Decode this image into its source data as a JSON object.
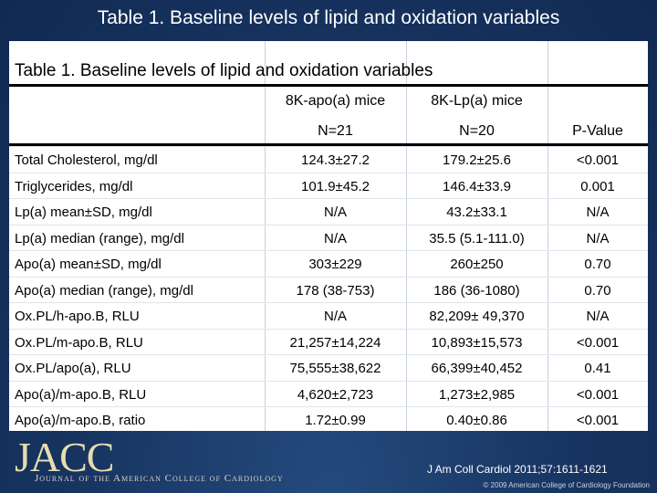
{
  "slide_title": "Table 1. Baseline levels of lipid and oxidation variables",
  "table": {
    "title": "Table 1. Baseline levels of lipid and oxidation variables",
    "headers": {
      "col1": {
        "group": "8K-apo(a) mice",
        "n": "N=21"
      },
      "col2": {
        "group": "8K-Lp(a) mice",
        "n": "N=20"
      },
      "col3": {
        "n": "P-Value"
      }
    },
    "rows": [
      {
        "label": "Total Cholesterol, mg/dl",
        "c1": "124.3±27.2",
        "c2": "179.2±25.6",
        "p": "<0.001"
      },
      {
        "label": "Triglycerides, mg/dl",
        "c1": "101.9±45.2",
        "c2": "146.4±33.9",
        "p": "0.001"
      },
      {
        "label": "Lp(a) mean±SD, mg/dl",
        "c1": "N/A",
        "c2": "43.2±33.1",
        "p": "N/A"
      },
      {
        "label": "Lp(a) median (range), mg/dl",
        "c1": "N/A",
        "c2": "35.5 (5.1-111.0)",
        "p": "N/A"
      },
      {
        "label": "Apo(a) mean±SD, mg/dl",
        "c1": "303±229",
        "c2": "260±250",
        "p": "0.70"
      },
      {
        "label": "Apo(a) median (range), mg/dl",
        "c1": "178 (38-753)",
        "c2": "186 (36-1080)",
        "p": "0.70"
      },
      {
        "label": "Ox.PL/h-apo.B, RLU",
        "c1": "N/A",
        "c2": "82,209± 49,370",
        "p": "N/A"
      },
      {
        "label": "Ox.PL/m-apo.B, RLU",
        "c1": "21,257±14,224",
        "c2": "10,893±15,573",
        "p": "<0.001"
      },
      {
        "label": "Ox.PL/apo(a), RLU",
        "c1": "75,555±38,622",
        "c2": "66,399±40,452",
        "p": "0.41"
      },
      {
        "label": "Apo(a)/m-apo.B, RLU",
        "c1": "4,620±2,723",
        "c2": "1,273±2,985",
        "p": "<0.001"
      },
      {
        "label": "Apo(a)/m-apo.B, ratio",
        "c1": "1.72±0.99",
        "c2": "0.40±0.86",
        "p": "<0.001"
      }
    ]
  },
  "footer": {
    "logo": "JACC",
    "logo_sub": "Journal of the American College of Cardiology",
    "citation": "J Am Coll Cardiol 2011;57:1611-1621",
    "copyright": "© 2009 American College of Cardiology Foundation"
  }
}
